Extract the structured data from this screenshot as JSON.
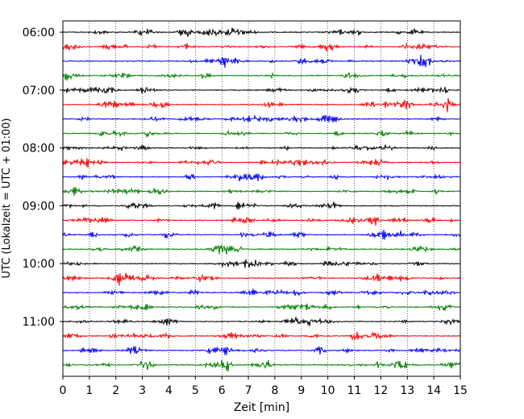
{
  "chart_data": {
    "type": "line",
    "title": "",
    "xlabel": "Zeit  [min]",
    "ylabel": "UTC (Lokalzeit = UTC + 01:00)",
    "xlim": [
      0,
      15
    ],
    "x_ticks": [
      0,
      1,
      2,
      3,
      4,
      5,
      6,
      7,
      8,
      9,
      10,
      11,
      12,
      13,
      14,
      15
    ],
    "x_tick_labels": [
      "0",
      "1",
      "2",
      "3",
      "4",
      "5",
      "6",
      "7",
      "8",
      "9",
      "10",
      "11",
      "12",
      "13",
      "14",
      "15"
    ],
    "y_tick_labels": [
      "06:00",
      "07:00",
      "08:00",
      "09:00",
      "10:00",
      "11:00"
    ],
    "y_tick_trace_index": [
      0,
      4,
      8,
      12,
      16,
      20
    ],
    "trace_interval_minutes": 15,
    "trace_count": 24,
    "trace_colors": [
      "#000000",
      "#ff0000",
      "#0000ff",
      "#008000"
    ],
    "vertical_grid": "dotted",
    "horizontal_grid": false,
    "legend": "none"
  }
}
